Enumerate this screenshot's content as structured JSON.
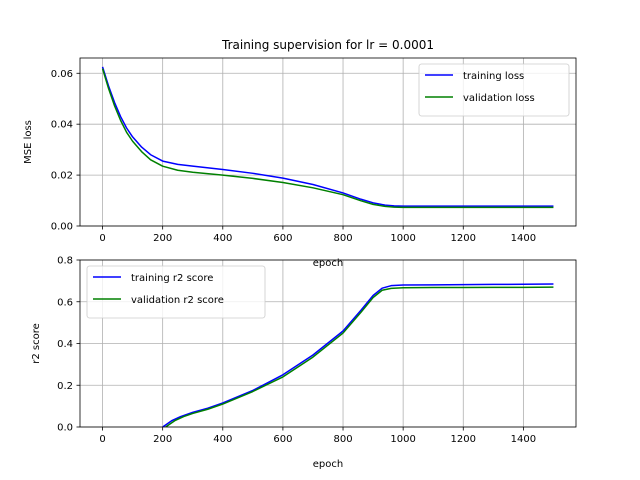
{
  "title": "Training supervision for lr = 0.0001",
  "chart_data": [
    {
      "type": "line",
      "title": "Training supervision for lr = 0.0001",
      "xlabel": "epoch",
      "ylabel": "MSE loss",
      "xlim": [
        -75,
        1575
      ],
      "ylim": [
        0,
        0.066
      ],
      "xticks": [
        0,
        200,
        400,
        600,
        800,
        1000,
        1200,
        1400
      ],
      "xtick_labels": [
        "0",
        "200",
        "400",
        "600",
        "800",
        "1000",
        "1200",
        "1400"
      ],
      "yticks": [
        0,
        0.02,
        0.04,
        0.06
      ],
      "ytick_labels": [
        "0.00",
        "0.02",
        "0.04",
        "0.06"
      ],
      "grid": true,
      "legend": "top-right",
      "series": [
        {
          "name": "training loss",
          "color": "#0000ff",
          "x": [
            0,
            20,
            40,
            60,
            80,
            100,
            130,
            160,
            200,
            250,
            300,
            400,
            500,
            600,
            700,
            800,
            860,
            900,
            940,
            970,
            1000,
            1100,
            1200,
            1300,
            1400,
            1500
          ],
          "y": [
            0.0625,
            0.055,
            0.0485,
            0.043,
            0.0385,
            0.035,
            0.031,
            0.028,
            0.0255,
            0.0242,
            0.0235,
            0.0222,
            0.0207,
            0.0188,
            0.0163,
            0.013,
            0.0105,
            0.0091,
            0.0082,
            0.0079,
            0.0078,
            0.0078,
            0.0078,
            0.0078,
            0.0078,
            0.0078
          ]
        },
        {
          "name": "validation loss",
          "color": "#008000",
          "x": [
            0,
            20,
            40,
            60,
            80,
            100,
            130,
            160,
            200,
            250,
            300,
            400,
            500,
            600,
            700,
            800,
            860,
            900,
            940,
            970,
            1000,
            1100,
            1200,
            1300,
            1400,
            1500
          ],
          "y": [
            0.0618,
            0.054,
            0.0472,
            0.0415,
            0.0368,
            0.0333,
            0.0292,
            0.026,
            0.0235,
            0.0219,
            0.0211,
            0.02,
            0.0187,
            0.0171,
            0.015,
            0.0123,
            0.0099,
            0.0085,
            0.0077,
            0.0074,
            0.0073,
            0.0073,
            0.0073,
            0.0073,
            0.0073,
            0.0073
          ]
        }
      ]
    },
    {
      "type": "line",
      "xlabel": "epoch",
      "ylabel": "r2 score",
      "xlim": [
        -75,
        1575
      ],
      "ylim": [
        0,
        0.8
      ],
      "xticks": [
        0,
        200,
        400,
        600,
        800,
        1000,
        1200,
        1400
      ],
      "xtick_labels": [
        "0",
        "200",
        "400",
        "600",
        "800",
        "1000",
        "1200",
        "1400"
      ],
      "yticks": [
        0,
        0.2,
        0.4,
        0.6,
        0.8
      ],
      "ytick_labels": [
        "0.0",
        "0.2",
        "0.4",
        "0.6",
        "0.8"
      ],
      "grid": true,
      "legend": "top-left",
      "series": [
        {
          "name": "training r2 score",
          "color": "#0000ff",
          "x": [
            200,
            230,
            260,
            300,
            350,
            400,
            500,
            600,
            700,
            800,
            860,
            900,
            930,
            960,
            1000,
            1100,
            1200,
            1300,
            1400,
            1500
          ],
          "y": [
            0.0,
            0.03,
            0.05,
            0.07,
            0.09,
            0.115,
            0.175,
            0.25,
            0.345,
            0.46,
            0.56,
            0.63,
            0.665,
            0.677,
            0.68,
            0.681,
            0.682,
            0.683,
            0.684,
            0.685
          ]
        },
        {
          "name": "validation r2 score",
          "color": "#008000",
          "x": [
            210,
            240,
            270,
            300,
            350,
            400,
            500,
            600,
            700,
            800,
            860,
            900,
            930,
            960,
            1000,
            1100,
            1200,
            1300,
            1400,
            1500
          ],
          "y": [
            0.0,
            0.03,
            0.05,
            0.065,
            0.085,
            0.11,
            0.17,
            0.24,
            0.335,
            0.45,
            0.55,
            0.62,
            0.655,
            0.664,
            0.667,
            0.668,
            0.668,
            0.669,
            0.669,
            0.67
          ]
        }
      ]
    }
  ]
}
